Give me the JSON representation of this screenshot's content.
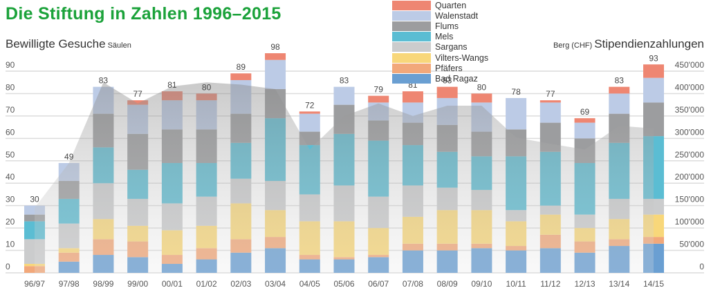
{
  "chart_data": {
    "type": "bar",
    "subtype": "stacked bar with area overlay",
    "title": "Die Stiftung in Zahlen 1996–2015",
    "left_axis": {
      "label": "Bewilligte Gesuche",
      "label_note": "Säulen",
      "ylim": [
        0,
        90
      ],
      "ticks": [
        "0",
        "10",
        "20",
        "30",
        "40",
        "50",
        "60",
        "70",
        "80",
        "90"
      ]
    },
    "right_axis": {
      "label": "Stipendienzahlungen",
      "label_note": "Berg (CHF)",
      "ylim": [
        0,
        450000
      ],
      "ticks": [
        "0",
        "50'000",
        "100'000",
        "150'000",
        "200'000",
        "250'000",
        "300'000",
        "350'000",
        "400'000",
        "450'000"
      ]
    },
    "grid": true,
    "legend_position": "top-center",
    "categories": [
      "96/97",
      "97/98",
      "98/99",
      "99/00",
      "00/01",
      "01/02",
      "02/03",
      "03/04",
      "04/05",
      "05/06",
      "06/07",
      "07/08",
      "08/09",
      "09/10",
      "10/11",
      "11/12",
      "12/13",
      "13/14",
      "14/15"
    ],
    "series": [
      {
        "name": "Bad Ragaz",
        "color": "#6a9fd2",
        "values": [
          0,
          5,
          8,
          7,
          4,
          6,
          9,
          11,
          6,
          6,
          7,
          10,
          10,
          11,
          10,
          11,
          9,
          12,
          13
        ]
      },
      {
        "name": "Pfäfers",
        "color": "#f2a87a",
        "values": [
          3,
          4,
          7,
          7,
          4,
          5,
          6,
          5,
          2,
          1,
          1,
          3,
          3,
          2,
          2,
          6,
          5,
          3,
          3
        ]
      },
      {
        "name": "Vilters-Wangs",
        "color": "#f8d77a",
        "values": [
          1,
          2,
          9,
          7,
          11,
          10,
          16,
          12,
          15,
          16,
          12,
          12,
          15,
          15,
          11,
          9,
          6,
          9,
          10
        ]
      },
      {
        "name": "Sargans",
        "color": "#cbcccd",
        "values": [
          11,
          11,
          16,
          12,
          12,
          13,
          11,
          13,
          12,
          16,
          14,
          14,
          10,
          9,
          5,
          4,
          6,
          9,
          7
        ]
      },
      {
        "name": "Mels",
        "color": "#5bbdd3",
        "values": [
          8,
          11,
          16,
          13,
          18,
          15,
          16,
          28,
          22,
          23,
          25,
          18,
          16,
          15,
          24,
          24,
          23,
          25,
          28
        ]
      },
      {
        "name": "Flums",
        "color": "#9c9d9f",
        "values": [
          3,
          8,
          15,
          16,
          15,
          15,
          13,
          13,
          6,
          13,
          9,
          10,
          12,
          11,
          12,
          13,
          11,
          13,
          15
        ]
      },
      {
        "name": "Walenstadt",
        "color": "#bccbe6",
        "values": [
          4,
          8,
          12,
          13,
          13,
          13,
          15,
          13,
          8,
          8,
          8,
          9,
          12,
          13,
          14,
          9,
          7,
          9,
          11
        ]
      },
      {
        "name": "Quarten",
        "color": "#ee8672",
        "values": [
          0,
          0,
          0,
          2,
          4,
          3,
          3,
          3,
          1,
          0,
          3,
          5,
          5,
          4,
          0,
          1,
          2,
          3,
          6
        ]
      }
    ],
    "totals": [
      30,
      49,
      83,
      77,
      81,
      80,
      89,
      98,
      72,
      83,
      79,
      81,
      83,
      80,
      78,
      77,
      69,
      83,
      93
    ],
    "area_series": {
      "name": "Stipendienzahlungen",
      "axis": "right",
      "values": [
        145000,
        245000,
        425000,
        378000,
        416000,
        425000,
        420000,
        410000,
        275000,
        350000,
        378000,
        350000,
        373000,
        373000,
        302000,
        288000,
        275000,
        328000,
        322000
      ]
    }
  }
}
